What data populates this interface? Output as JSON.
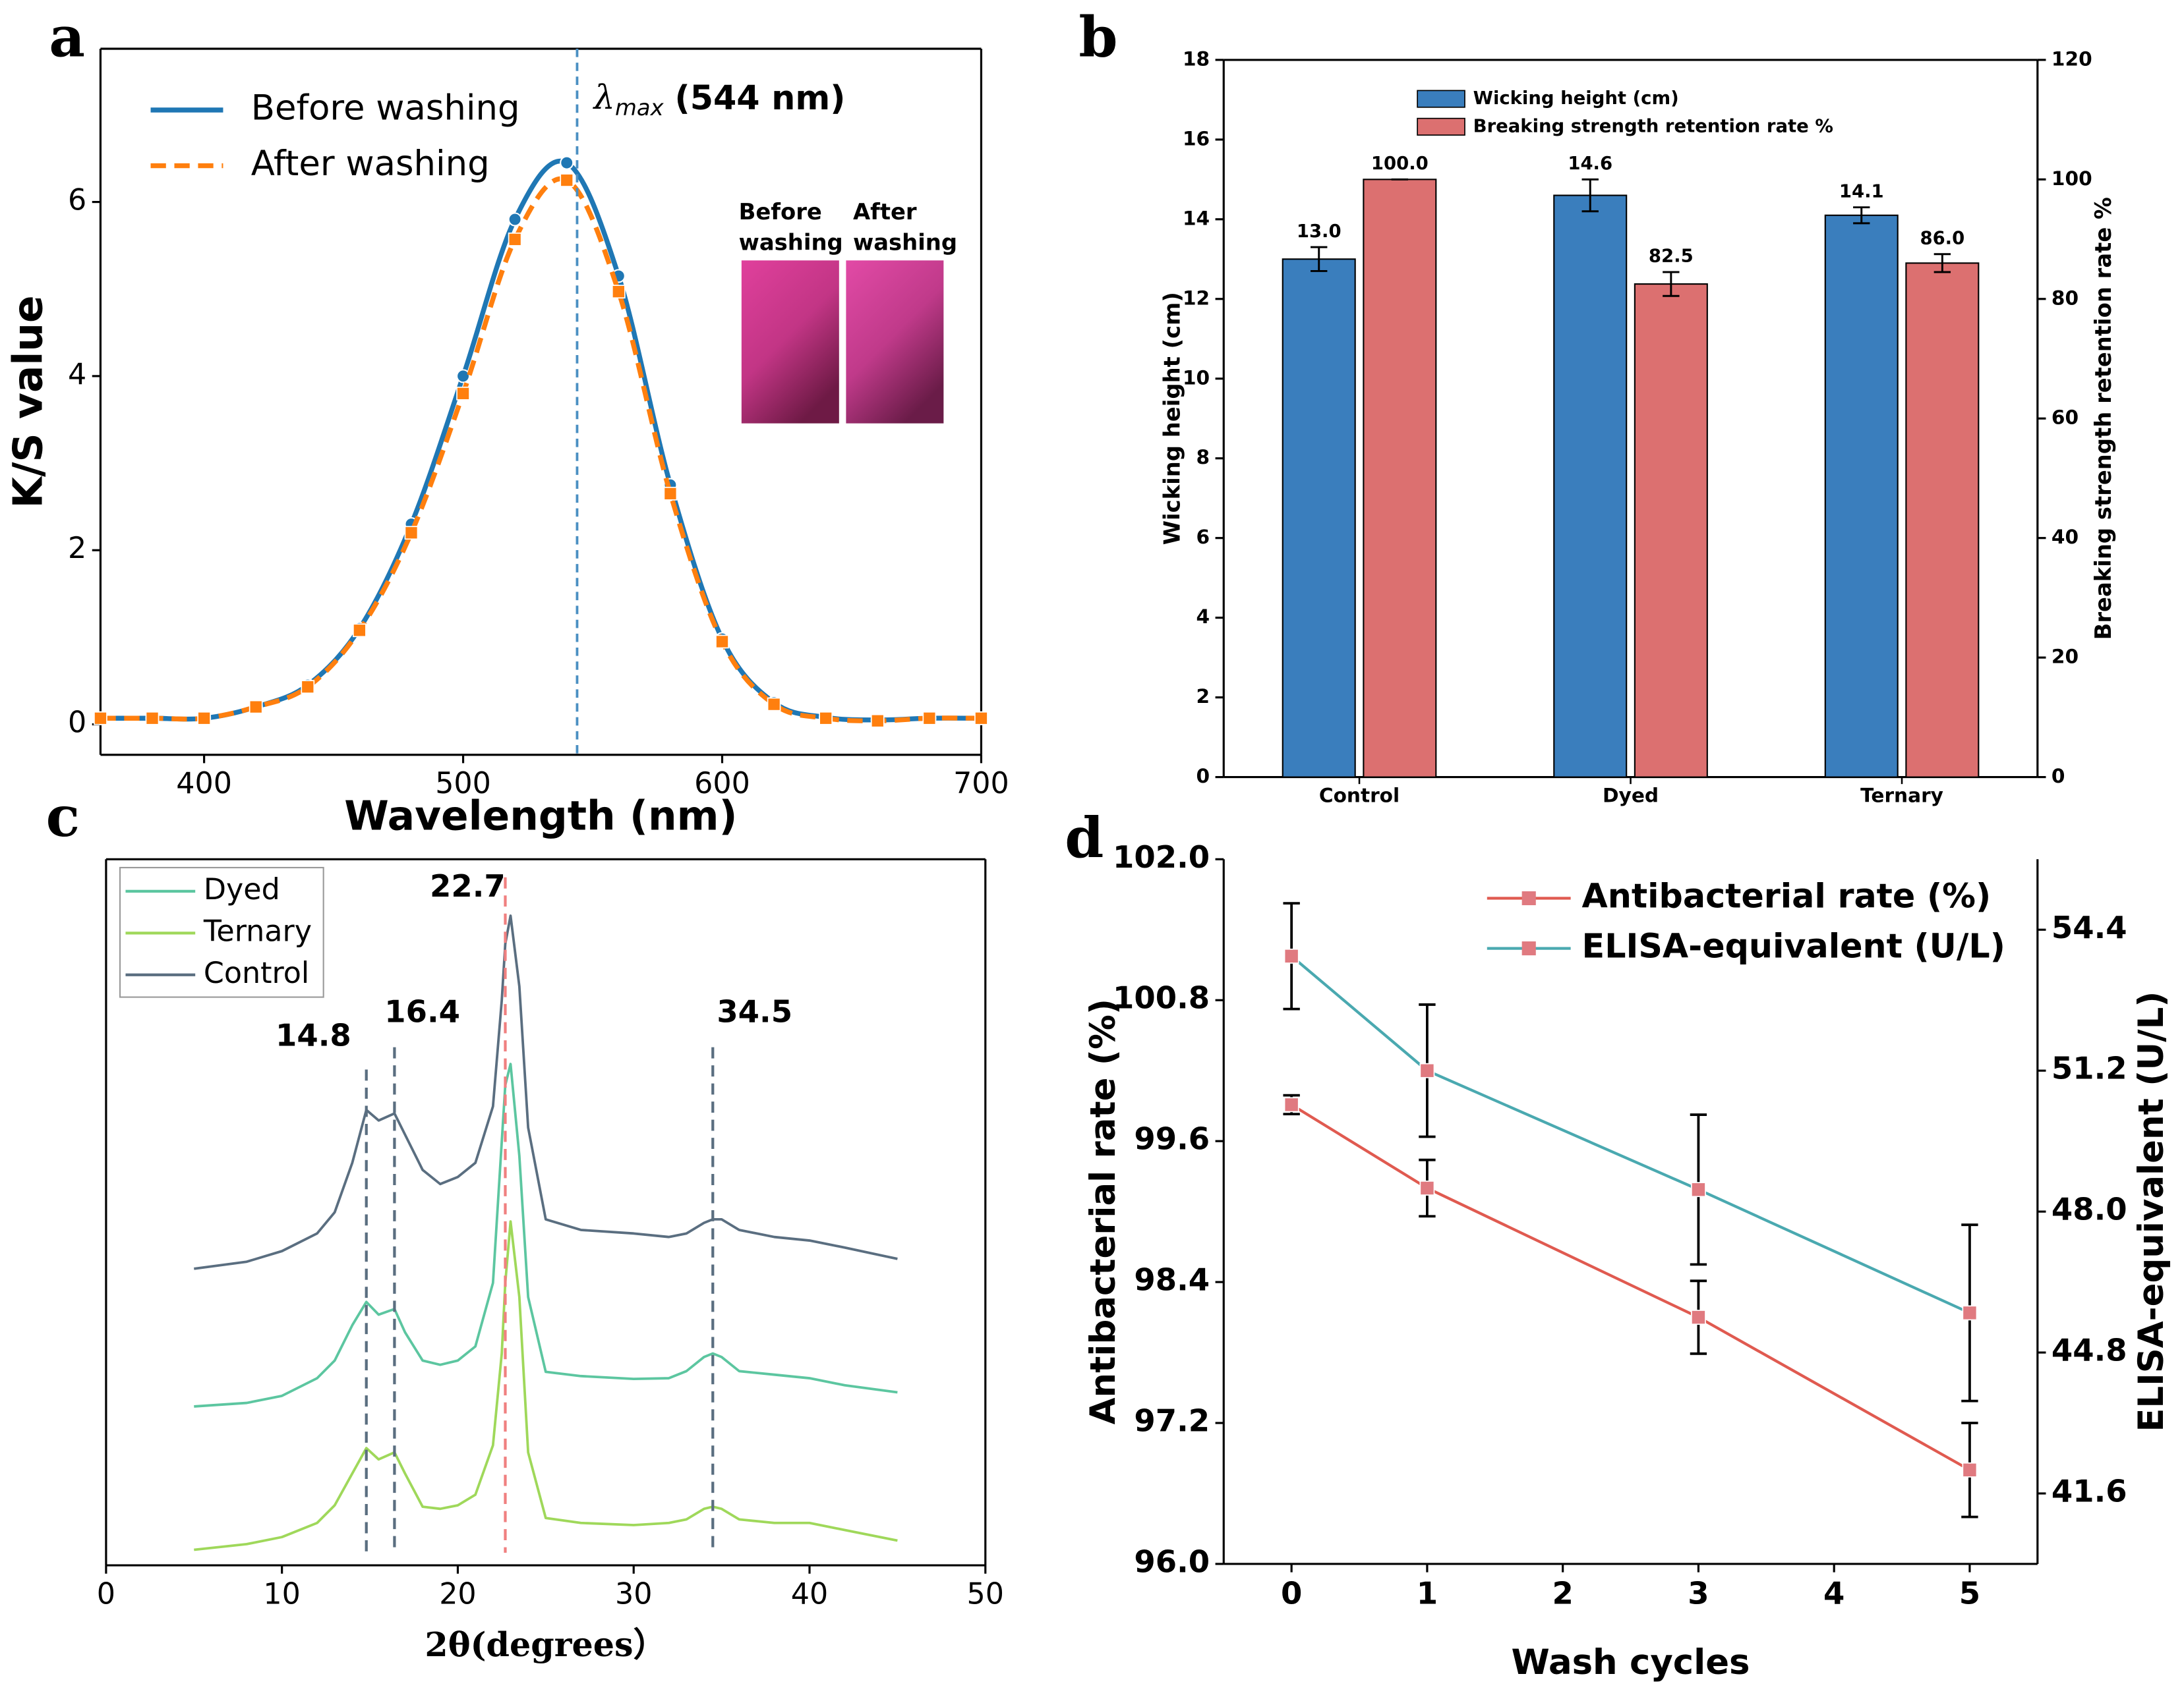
{
  "chart_data": [
    {
      "type": "line",
      "panel_label": "a",
      "x_label": "Wavelength (nm)",
      "y_label": "K/S value",
      "x": [
        360,
        380,
        400,
        420,
        440,
        460,
        480,
        500,
        520,
        540,
        560,
        580,
        600,
        620,
        640,
        660,
        680,
        700
      ],
      "series": [
        {
          "name": "Before washing",
          "color": "#1f77b4",
          "linestyle": "solid",
          "marker": "circle",
          "values": [
            0.07,
            0.07,
            0.07,
            0.2,
            0.45,
            1.1,
            2.3,
            4.0,
            5.8,
            6.45,
            5.15,
            2.75,
            0.98,
            0.25,
            0.08,
            0.05,
            0.07,
            0.07
          ]
        },
        {
          "name": "After washing",
          "color": "#ff7f0e",
          "linestyle": "dashed",
          "marker": "square",
          "values": [
            0.07,
            0.07,
            0.07,
            0.2,
            0.43,
            1.08,
            2.2,
            3.8,
            5.57,
            6.25,
            4.97,
            2.65,
            0.95,
            0.23,
            0.07,
            0.04,
            0.07,
            0.07
          ]
        }
      ],
      "smooth": true,
      "xlim": [
        360,
        700
      ],
      "xticks": [
        400,
        500,
        600,
        700
      ],
      "ylim": [
        -0.35,
        7.76
      ],
      "yticks": [
        0,
        2,
        4,
        6
      ],
      "annotation": {
        "x": 544,
        "symbol": "λ",
        "subscript": "max",
        "text": "(544 nm)",
        "color": "#4a8fc2"
      },
      "inset_labels": [
        [
          "Before",
          "washing"
        ],
        [
          "After",
          "washing"
        ]
      ],
      "legend": "upper left"
    },
    {
      "type": "bar",
      "panel_label": "b",
      "y_label": "Wicking height (cm)",
      "y2_label": "Breaking strength retention rate %",
      "categories": [
        "Control",
        "Dyed",
        "Ternary"
      ],
      "series": [
        {
          "name": "Wicking height (cm)",
          "color": "#3a7ebd",
          "axis": "y",
          "values": [
            13.0,
            14.6,
            14.1
          ],
          "errors": [
            0.3,
            0.4,
            0.2
          ],
          "value_labels": [
            "13.0",
            "14.6",
            "14.1"
          ]
        },
        {
          "name": "Breaking strength retention rate %",
          "color": "#dc7070",
          "axis": "y2",
          "values": [
            100.0,
            82.5,
            86.0
          ],
          "errors": [
            0,
            2,
            1.5
          ],
          "value_labels": [
            "100.0",
            "82.5",
            "86.0"
          ]
        }
      ],
      "ylim": [
        0,
        18
      ],
      "yticks": [
        0,
        2,
        4,
        6,
        8,
        10,
        12,
        14,
        16,
        18
      ],
      "y2lim": [
        0,
        120
      ],
      "y2ticks": [
        0,
        20,
        40,
        60,
        80,
        100,
        120
      ],
      "legend": "upper center"
    },
    {
      "type": "line",
      "panel_label": "c",
      "x_label": "2θ(degrees）",
      "x": [
        5,
        8,
        10,
        12,
        13,
        14,
        14.8,
        15.5,
        16.4,
        17,
        18,
        19,
        20,
        21,
        22,
        22.5,
        22.7,
        23,
        23.5,
        24,
        25,
        27,
        30,
        32,
        33,
        34,
        34.5,
        35,
        36,
        38,
        40,
        42,
        45
      ],
      "series": [
        {
          "name": "Dyed",
          "color": "#5cc6a0",
          "linestyle": "solid",
          "values": [
            22.5,
            23,
            24,
            26.5,
            29,
            34,
            37.3,
            35.5,
            36.3,
            33,
            29,
            28.4,
            29,
            31,
            40,
            60,
            68,
            71,
            58,
            38,
            27.4,
            26.8,
            26.4,
            26.5,
            27.5,
            29.5,
            30,
            29.5,
            27.5,
            27,
            26.5,
            25.5,
            24.5
          ]
        },
        {
          "name": "Ternary",
          "color": "#9fd85a",
          "linestyle": "solid",
          "values": [
            2.2,
            3,
            4,
            6,
            8.5,
            13,
            16.6,
            15,
            16,
            13,
            8.3,
            8,
            8.5,
            10,
            17,
            30,
            40,
            48.7,
            38,
            16,
            6.7,
            6,
            5.7,
            6,
            6.5,
            8,
            8.3,
            8,
            6.5,
            6,
            6,
            5,
            3.5
          ]
        },
        {
          "name": "Control",
          "color": "#5a6e80",
          "linestyle": "solid",
          "values": [
            42,
            43,
            44.5,
            47,
            50,
            57,
            64.5,
            63,
            64,
            61,
            56,
            54,
            55,
            57,
            65,
            80,
            88,
            92,
            82,
            62,
            49,
            47.5,
            47,
            46.5,
            47,
            48.5,
            49,
            49,
            47.5,
            46.5,
            46,
            45,
            43.4
          ]
        }
      ],
      "xlim": [
        0,
        50
      ],
      "xticks": [
        0,
        10,
        20,
        30,
        40,
        50
      ],
      "ylim": [
        0,
        100
      ],
      "peaks": [
        {
          "value": 14.8,
          "color": "#5a6e80"
        },
        {
          "value": 16.4,
          "color": "#5a6e80"
        },
        {
          "value": 22.7,
          "color": "#f08080"
        },
        {
          "value": 34.5,
          "color": "#5a6e80"
        }
      ],
      "legend": "upper left"
    },
    {
      "type": "line",
      "panel_label": "d",
      "x_label": "Wash cycles",
      "y_label": "Antibacterial rate (%)",
      "y2_label": "ELISA-equivalent (U/L)",
      "x": [
        0,
        1,
        3,
        5
      ],
      "series": [
        {
          "name": "Antibacterial rate (%)",
          "color": "#e05a50",
          "marker_color": "#e07a80",
          "linestyle": "solid",
          "marker": "square",
          "axis": "y",
          "values": [
            99.91,
            99.2,
            98.1,
            96.8
          ],
          "errors": [
            0.08,
            0.24,
            0.31,
            0.4
          ]
        },
        {
          "name": "ELISA-equivalent (U/L)",
          "color": "#4aa9b0",
          "marker_color": "#e07a80",
          "linestyle": "solid",
          "marker": "square",
          "axis": "y2",
          "values": [
            53.8,
            51.2,
            48.5,
            45.7
          ],
          "errors": [
            1.2,
            1.5,
            1.7,
            2.0
          ]
        }
      ],
      "xlim": [
        -0.5,
        5.5
      ],
      "xticks": [
        0,
        1,
        2,
        3,
        4,
        5
      ],
      "ylim": [
        96,
        102
      ],
      "yticks": [
        {
          "value": 96,
          "label": "96.0"
        },
        97.2,
        98.4,
        99.6,
        100.8,
        {
          "value": 102,
          "label": "102.0"
        }
      ],
      "y2lim": [
        40,
        56
      ],
      "y2ticks": [
        41.6,
        44.8,
        {
          "value": 48,
          "label": "48.0"
        },
        51.2,
        54.4
      ],
      "legend": "upper right"
    }
  ]
}
